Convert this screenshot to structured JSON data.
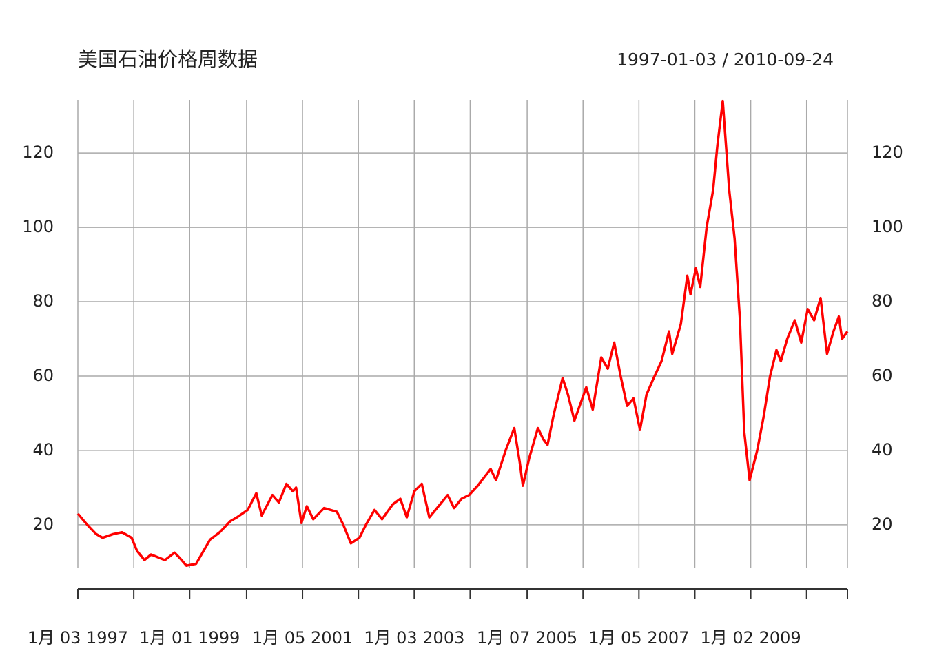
{
  "chart_data": {
    "type": "line",
    "title": "美国石油价格周数据",
    "subtitle": "1997-01-03 / 2010-09-24",
    "x": [
      "1997-01-03",
      "1997-03-05",
      "1997-05-02",
      "1997-06-13",
      "1997-08-22",
      "1997-10-17",
      "1997-12-19",
      "1998-01-23",
      "1998-03-13",
      "1998-04-24",
      "1998-07-24",
      "1998-09-25",
      "1998-10-30",
      "1998-12-11",
      "1999-02-12",
      "1999-05-14",
      "1999-07-16",
      "1999-09-24",
      "1999-11-05",
      "2000-01-14",
      "2000-03-10",
      "2000-04-14",
      "2000-06-23",
      "2000-08-04",
      "2000-09-22",
      "2000-11-03",
      "2000-11-24",
      "2000-12-29",
      "2001-02-02",
      "2001-03-16",
      "2001-05-25",
      "2001-08-17",
      "2001-09-28",
      "2001-11-16",
      "2002-01-11",
      "2002-02-22",
      "2002-04-19",
      "2002-06-07",
      "2002-08-16",
      "2002-10-04",
      "2002-11-15",
      "2003-01-03",
      "2003-02-21",
      "2003-04-11",
      "2003-06-20",
      "2003-08-08",
      "2003-09-19",
      "2003-11-07",
      "2003-12-26",
      "2004-02-20",
      "2004-05-14",
      "2004-06-18",
      "2004-08-20",
      "2004-10-15",
      "2004-11-19",
      "2004-12-10",
      "2005-01-21",
      "2005-03-18",
      "2005-04-22",
      "2005-05-20",
      "2005-07-01",
      "2005-08-26",
      "2005-09-30",
      "2005-11-11",
      "2006-01-27",
      "2006-03-10",
      "2006-05-05",
      "2006-06-16",
      "2006-07-28",
      "2006-09-08",
      "2006-10-20",
      "2006-12-01",
      "2007-01-12",
      "2007-02-23",
      "2007-04-06",
      "2007-06-01",
      "2007-07-20",
      "2007-08-10",
      "2007-10-05",
      "2007-11-16",
      "2007-12-07",
      "2008-01-11",
      "2008-02-08",
      "2008-03-21",
      "2008-05-02",
      "2008-05-30",
      "2008-07-04",
      "2008-08-15",
      "2008-09-19",
      "2008-10-24",
      "2008-11-21",
      "2008-12-26",
      "2009-02-13",
      "2009-03-27",
      "2009-05-08",
      "2009-06-19",
      "2009-07-17",
      "2009-08-28",
      "2009-10-16",
      "2009-11-27",
      "2010-01-08",
      "2010-02-19",
      "2010-04-02",
      "2010-05-14",
      "2010-06-25",
      "2010-07-30",
      "2010-08-20",
      "2010-09-24"
    ],
    "series": [
      {
        "name": "oil",
        "color": "#ff0000",
        "values": [
          23,
          20,
          17.5,
          16.5,
          17.5,
          18,
          16.5,
          13,
          10.5,
          12,
          10.5,
          12.5,
          11,
          9,
          9.5,
          16,
          18,
          21,
          22,
          24,
          28.5,
          22.5,
          28,
          26,
          31,
          29,
          30,
          20.5,
          25,
          21.5,
          24.5,
          23.5,
          20,
          15,
          16.5,
          20,
          24,
          21.5,
          25.5,
          27,
          22,
          29,
          31,
          22,
          25.5,
          28,
          24.5,
          27,
          28,
          30.5,
          35,
          32,
          40,
          46,
          37,
          30.5,
          38,
          46,
          43,
          41.5,
          50,
          59.5,
          55,
          48,
          57,
          51,
          65,
          62,
          69,
          60,
          52,
          54,
          45.5,
          55,
          59,
          64,
          72,
          66,
          74,
          87,
          82,
          89,
          84,
          100,
          110,
          122,
          134,
          110,
          97,
          75,
          45,
          32,
          40,
          49,
          60,
          67,
          64,
          70,
          75,
          69,
          78,
          75,
          81,
          66,
          72,
          76,
          70,
          72
        ]
      }
    ],
    "xlim": [
      "1997-01-03",
      "2010-09-24"
    ],
    "xticks": [
      {
        "value": "1997-01-03",
        "label": "1月 03 1997"
      },
      {
        "value": "1998-01-02",
        "label": null
      },
      {
        "value": "1999-01-01",
        "label": "1月 01 1999"
      },
      {
        "value": "2000-01-07",
        "label": null
      },
      {
        "value": "2001-01-05",
        "label": "1月 05 2001"
      },
      {
        "value": "2002-01-04",
        "label": null
      },
      {
        "value": "2003-01-03",
        "label": "1月 03 2003"
      },
      {
        "value": "2004-01-02",
        "label": null
      },
      {
        "value": "2005-01-07",
        "label": "1月 07 2005"
      },
      {
        "value": "2006-01-06",
        "label": null
      },
      {
        "value": "2007-01-05",
        "label": "1月 05 2007"
      },
      {
        "value": "2008-01-04",
        "label": null
      },
      {
        "value": "2009-01-02",
        "label": "1月 02 2009"
      },
      {
        "value": "2010-01-01",
        "label": null
      },
      {
        "value": "2010-09-24",
        "label": null
      }
    ],
    "ylim": [
      8.3,
      134.3
    ],
    "yticks": [
      20,
      40,
      60,
      80,
      100,
      120
    ],
    "grid": true
  }
}
